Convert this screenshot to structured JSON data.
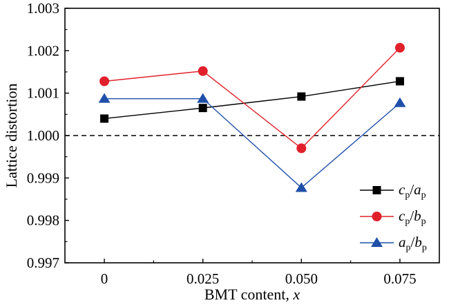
{
  "chart_data": {
    "type": "line",
    "xlabel": "BMT content, ",
    "xlabel_var": "x",
    "ylabel": "Lattice distortion",
    "categories": [
      "0",
      "0.025",
      "0.050",
      "0.075"
    ],
    "x": [
      0,
      0.025,
      0.05,
      0.075
    ],
    "xlim": [
      -0.01,
      0.085
    ],
    "ylim": [
      0.997,
      1.003
    ],
    "yticks": [
      0.997,
      0.998,
      0.999,
      1.0,
      1.001,
      1.002,
      1.003
    ],
    "ytick_labels": [
      "0.997",
      "0.998",
      "0.999",
      "1.000",
      "1.001",
      "1.002",
      "1.003"
    ],
    "reference_line": {
      "y": 1.0,
      "style": "dashed"
    },
    "grid": false,
    "legend_position": "bottom-right",
    "series": [
      {
        "name": "cp/ap",
        "label": {
          "a": "c",
          "as": "p",
          "b": "a",
          "bs": "p"
        },
        "values": [
          1.0004,
          1.00065,
          1.00092,
          1.00128
        ],
        "color": "#000000",
        "marker": "square"
      },
      {
        "name": "cp/bp",
        "label": {
          "a": "c",
          "as": "p",
          "b": "b",
          "bs": "p"
        },
        "values": [
          1.00128,
          1.00152,
          0.9997,
          1.00207
        ],
        "color": "#e0202a",
        "marker": "circle"
      },
      {
        "name": "ap/bp",
        "label": {
          "a": "a",
          "as": "p",
          "b": "b",
          "bs": "p"
        },
        "values": [
          1.00087,
          1.00087,
          0.99877,
          1.00077
        ],
        "color": "#1f4fa8",
        "marker": "triangle"
      }
    ]
  }
}
